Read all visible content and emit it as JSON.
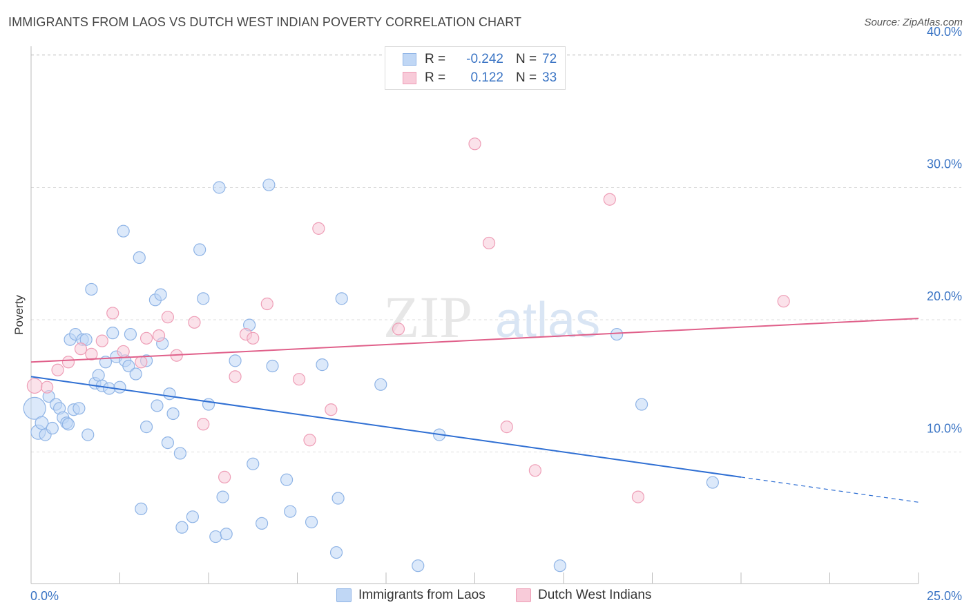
{
  "title": "IMMIGRANTS FROM LAOS VS DUTCH WEST INDIAN POVERTY CORRELATION CHART",
  "source": "Source: ZipAtlas.com",
  "watermark": {
    "part1": "ZIP",
    "part2": "atlas"
  },
  "legend": {
    "r_label": "R =",
    "n_label": "N =",
    "series": [
      {
        "name": "Immigrants from Laos",
        "r": "-0.242",
        "n": "72"
      },
      {
        "name": "Dutch West Indians",
        "r": "0.122",
        "n": "33"
      }
    ]
  },
  "colors": {
    "blue_fill": "#c0d7f5",
    "blue_stroke": "#8fb4e6",
    "blue_line": "#2f6fd3",
    "pink_fill": "#f8cbd9",
    "pink_stroke": "#ee9db6",
    "pink_line": "#e0608a",
    "tick_text": "#3a74c4",
    "grid": "#dddddd"
  },
  "chart_data": {
    "type": "scatter",
    "title": "IMMIGRANTS FROM LAOS VS DUTCH WEST INDIAN POVERTY CORRELATION CHART",
    "xlabel": "",
    "ylabel": "Poverty",
    "xlim": [
      0,
      25
    ],
    "ylim": [
      0,
      40
    ],
    "x_tick_labels": [
      "0.0%",
      "25.0%"
    ],
    "y_ticks": [
      10,
      20,
      30,
      40
    ],
    "y_tick_labels": [
      "10.0%",
      "20.0%",
      "30.0%",
      "40.0%"
    ],
    "series": [
      {
        "name": "Immigrants from Laos",
        "r": -0.242,
        "n": 72,
        "trend": {
          "x0": 0,
          "y0": 15.7,
          "x1": 20,
          "y1": 8.1,
          "dash_to_x": 25,
          "dash_to_y": 6.2
        },
        "points": [
          {
            "x": 0.1,
            "y": 13.3,
            "s": 3.5
          },
          {
            "x": 0.2,
            "y": 11.5,
            "s": 1.5
          },
          {
            "x": 0.3,
            "y": 12.2,
            "s": 1.2
          },
          {
            "x": 0.4,
            "y": 11.3,
            "s": 1
          },
          {
            "x": 0.5,
            "y": 14.2,
            "s": 1
          },
          {
            "x": 0.6,
            "y": 11.8,
            "s": 1
          },
          {
            "x": 0.7,
            "y": 13.6,
            "s": 1
          },
          {
            "x": 0.8,
            "y": 13.3,
            "s": 1
          },
          {
            "x": 0.9,
            "y": 12.6,
            "s": 1
          },
          {
            "x": 1.0,
            "y": 12.2,
            "s": 1
          },
          {
            "x": 1.05,
            "y": 12.1,
            "s": 1
          },
          {
            "x": 1.1,
            "y": 18.5,
            "s": 1
          },
          {
            "x": 1.2,
            "y": 13.2,
            "s": 1
          },
          {
            "x": 1.25,
            "y": 18.9,
            "s": 1
          },
          {
            "x": 1.35,
            "y": 13.3,
            "s": 1
          },
          {
            "x": 1.45,
            "y": 18.5,
            "s": 1
          },
          {
            "x": 1.55,
            "y": 18.5,
            "s": 1
          },
          {
            "x": 1.6,
            "y": 11.3,
            "s": 1
          },
          {
            "x": 1.7,
            "y": 22.3,
            "s": 1
          },
          {
            "x": 1.8,
            "y": 15.2,
            "s": 1
          },
          {
            "x": 1.9,
            "y": 15.8,
            "s": 1
          },
          {
            "x": 2.0,
            "y": 15.0,
            "s": 1
          },
          {
            "x": 2.1,
            "y": 16.8,
            "s": 1
          },
          {
            "x": 2.2,
            "y": 14.8,
            "s": 1
          },
          {
            "x": 2.3,
            "y": 19.0,
            "s": 1
          },
          {
            "x": 2.4,
            "y": 17.2,
            "s": 1
          },
          {
            "x": 2.5,
            "y": 14.9,
            "s": 1
          },
          {
            "x": 2.6,
            "y": 26.7,
            "s": 1
          },
          {
            "x": 2.65,
            "y": 16.9,
            "s": 1
          },
          {
            "x": 2.75,
            "y": 16.5,
            "s": 1
          },
          {
            "x": 2.8,
            "y": 18.9,
            "s": 1
          },
          {
            "x": 2.95,
            "y": 15.9,
            "s": 1
          },
          {
            "x": 3.05,
            "y": 24.7,
            "s": 1
          },
          {
            "x": 3.1,
            "y": 5.7,
            "s": 1
          },
          {
            "x": 3.25,
            "y": 11.9,
            "s": 1
          },
          {
            "x": 3.25,
            "y": 16.9,
            "s": 1
          },
          {
            "x": 3.5,
            "y": 21.5,
            "s": 1
          },
          {
            "x": 3.55,
            "y": 13.5,
            "s": 1
          },
          {
            "x": 3.65,
            "y": 21.9,
            "s": 1
          },
          {
            "x": 3.7,
            "y": 18.2,
            "s": 1
          },
          {
            "x": 3.85,
            "y": 10.7,
            "s": 1
          },
          {
            "x": 3.9,
            "y": 14.4,
            "s": 1
          },
          {
            "x": 4.0,
            "y": 12.9,
            "s": 1
          },
          {
            "x": 4.2,
            "y": 9.9,
            "s": 1
          },
          {
            "x": 4.25,
            "y": 4.3,
            "s": 1
          },
          {
            "x": 4.55,
            "y": 5.1,
            "s": 1
          },
          {
            "x": 4.75,
            "y": 25.3,
            "s": 1
          },
          {
            "x": 4.85,
            "y": 21.6,
            "s": 1
          },
          {
            "x": 5.0,
            "y": 13.6,
            "s": 1
          },
          {
            "x": 5.2,
            "y": 3.6,
            "s": 1
          },
          {
            "x": 5.3,
            "y": 30.0,
            "s": 1
          },
          {
            "x": 5.4,
            "y": 6.6,
            "s": 1
          },
          {
            "x": 5.5,
            "y": 3.8,
            "s": 1
          },
          {
            "x": 5.75,
            "y": 16.9,
            "s": 1
          },
          {
            "x": 6.15,
            "y": 19.6,
            "s": 1
          },
          {
            "x": 6.25,
            "y": 9.1,
            "s": 1
          },
          {
            "x": 6.5,
            "y": 4.6,
            "s": 1
          },
          {
            "x": 6.7,
            "y": 30.2,
            "s": 1
          },
          {
            "x": 6.8,
            "y": 16.5,
            "s": 1
          },
          {
            "x": 7.2,
            "y": 7.9,
            "s": 1
          },
          {
            "x": 7.3,
            "y": 5.5,
            "s": 1
          },
          {
            "x": 7.9,
            "y": 4.7,
            "s": 1
          },
          {
            "x": 8.2,
            "y": 16.6,
            "s": 1
          },
          {
            "x": 8.6,
            "y": 2.4,
            "s": 1
          },
          {
            "x": 8.65,
            "y": 6.5,
            "s": 1
          },
          {
            "x": 8.75,
            "y": 21.6,
            "s": 1
          },
          {
            "x": 9.85,
            "y": 15.1,
            "s": 1
          },
          {
            "x": 10.9,
            "y": 1.4,
            "s": 1
          },
          {
            "x": 11.5,
            "y": 11.3,
            "s": 1
          },
          {
            "x": 14.9,
            "y": 1.4,
            "s": 1
          },
          {
            "x": 16.5,
            "y": 18.9,
            "s": 1
          },
          {
            "x": 17.2,
            "y": 13.6,
            "s": 1
          },
          {
            "x": 19.2,
            "y": 7.7,
            "s": 1
          }
        ]
      },
      {
        "name": "Dutch West Indians",
        "r": 0.122,
        "n": 33,
        "trend": {
          "x0": 0,
          "y0": 16.8,
          "x1": 25,
          "y1": 20.1
        },
        "points": [
          {
            "x": 0.1,
            "y": 15.0,
            "s": 1.6
          },
          {
            "x": 0.45,
            "y": 14.9,
            "s": 1
          },
          {
            "x": 0.75,
            "y": 16.2,
            "s": 1
          },
          {
            "x": 1.05,
            "y": 16.8,
            "s": 1
          },
          {
            "x": 1.4,
            "y": 17.8,
            "s": 1
          },
          {
            "x": 1.7,
            "y": 17.4,
            "s": 1
          },
          {
            "x": 2.0,
            "y": 18.4,
            "s": 1
          },
          {
            "x": 2.3,
            "y": 20.5,
            "s": 1
          },
          {
            "x": 2.6,
            "y": 17.6,
            "s": 1
          },
          {
            "x": 3.1,
            "y": 16.8,
            "s": 1
          },
          {
            "x": 3.25,
            "y": 18.6,
            "s": 1
          },
          {
            "x": 3.6,
            "y": 18.8,
            "s": 1
          },
          {
            "x": 3.85,
            "y": 20.2,
            "s": 1
          },
          {
            "x": 4.1,
            "y": 17.3,
            "s": 1
          },
          {
            "x": 4.6,
            "y": 19.8,
            "s": 1
          },
          {
            "x": 4.85,
            "y": 12.1,
            "s": 1
          },
          {
            "x": 5.45,
            "y": 8.1,
            "s": 1
          },
          {
            "x": 5.75,
            "y": 15.7,
            "s": 1
          },
          {
            "x": 6.05,
            "y": 18.9,
            "s": 1
          },
          {
            "x": 6.25,
            "y": 18.6,
            "s": 1
          },
          {
            "x": 6.65,
            "y": 21.2,
            "s": 1
          },
          {
            "x": 7.55,
            "y": 15.5,
            "s": 1
          },
          {
            "x": 7.85,
            "y": 10.9,
            "s": 1
          },
          {
            "x": 8.1,
            "y": 26.9,
            "s": 1
          },
          {
            "x": 8.45,
            "y": 13.2,
            "s": 1
          },
          {
            "x": 10.35,
            "y": 19.3,
            "s": 1
          },
          {
            "x": 12.5,
            "y": 33.3,
            "s": 1
          },
          {
            "x": 12.9,
            "y": 25.8,
            "s": 1
          },
          {
            "x": 13.4,
            "y": 11.9,
            "s": 1
          },
          {
            "x": 14.2,
            "y": 8.6,
            "s": 1
          },
          {
            "x": 16.3,
            "y": 29.1,
            "s": 1
          },
          {
            "x": 17.1,
            "y": 6.6,
            "s": 1
          },
          {
            "x": 21.2,
            "y": 21.4,
            "s": 1
          }
        ]
      }
    ]
  }
}
